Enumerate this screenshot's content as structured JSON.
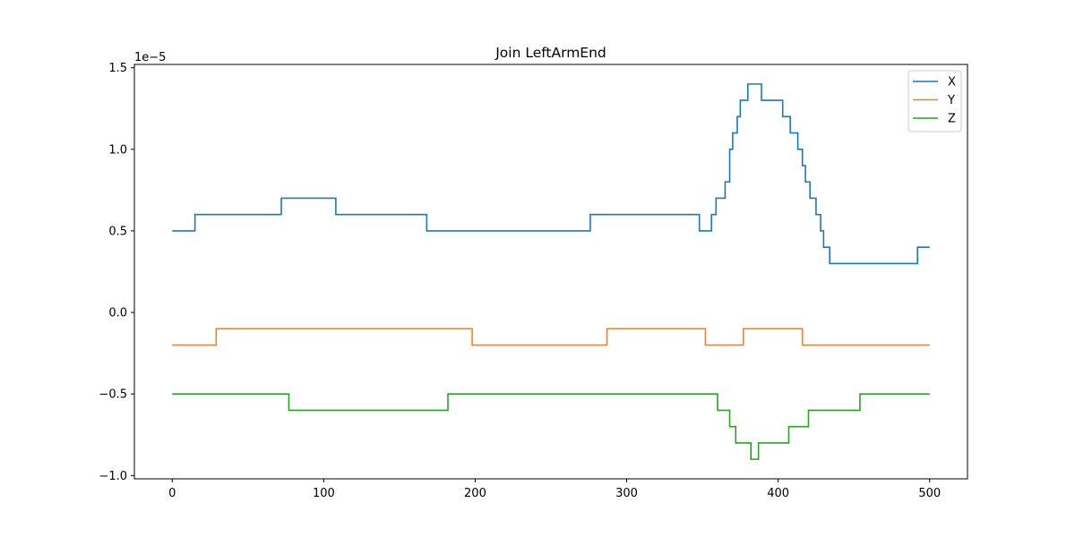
{
  "chart_data": {
    "type": "line",
    "title": "Join LeftArmEnd",
    "xlabel": "",
    "ylabel": "",
    "y_offset_label": "1e−5",
    "xlim": [
      -25,
      525
    ],
    "ylim": [
      -1.02,
      1.52
    ],
    "x_ticks": [
      0,
      100,
      200,
      300,
      400,
      500
    ],
    "x_tick_labels": [
      "0",
      "100",
      "200",
      "300",
      "400",
      "500"
    ],
    "y_ticks": [
      -1.0,
      -0.5,
      0.0,
      0.5,
      1.0,
      1.5
    ],
    "y_tick_labels": [
      "−1.0",
      "−0.5",
      "0.0",
      "0.5",
      "1.0",
      "1.5"
    ],
    "grid": false,
    "legend_position": "top-right",
    "series": [
      {
        "name": "X",
        "color": "#1f77b4",
        "steps": [
          [
            0,
            0.5
          ],
          [
            15,
            0.6
          ],
          [
            72,
            0.7
          ],
          [
            108,
            0.6
          ],
          [
            168,
            0.5
          ],
          [
            276,
            0.6
          ],
          [
            348,
            0.5
          ],
          [
            356,
            0.6
          ],
          [
            359,
            0.7
          ],
          [
            365,
            0.8
          ],
          [
            368,
            1.0
          ],
          [
            370,
            1.1
          ],
          [
            373,
            1.2
          ],
          [
            375,
            1.3
          ],
          [
            380,
            1.4
          ],
          [
            389,
            1.3
          ],
          [
            403,
            1.2
          ],
          [
            408,
            1.1
          ],
          [
            413,
            1.0
          ],
          [
            416,
            0.9
          ],
          [
            418,
            0.8
          ],
          [
            421,
            0.7
          ],
          [
            425,
            0.6
          ],
          [
            428,
            0.5
          ],
          [
            430,
            0.4
          ],
          [
            434,
            0.3
          ],
          [
            492,
            0.4
          ],
          [
            500,
            0.4
          ]
        ]
      },
      {
        "name": "Y",
        "color": "#ff7f0e",
        "steps": [
          [
            0,
            -0.2
          ],
          [
            29,
            -0.1
          ],
          [
            198,
            -0.2
          ],
          [
            287,
            -0.1
          ],
          [
            352,
            -0.2
          ],
          [
            377,
            -0.1
          ],
          [
            416,
            -0.2
          ],
          [
            500,
            -0.2
          ]
        ]
      },
      {
        "name": "Z",
        "color": "#2ca02c",
        "steps": [
          [
            0,
            -0.5
          ],
          [
            77,
            -0.6
          ],
          [
            182,
            -0.5
          ],
          [
            360,
            -0.6
          ],
          [
            368,
            -0.7
          ],
          [
            372,
            -0.8
          ],
          [
            382,
            -0.9
          ],
          [
            387,
            -0.8
          ],
          [
            407,
            -0.7
          ],
          [
            420,
            -0.6
          ],
          [
            454,
            -0.5
          ],
          [
            500,
            -0.5
          ]
        ]
      }
    ]
  }
}
